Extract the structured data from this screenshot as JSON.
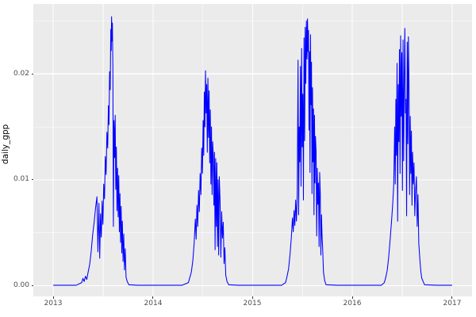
{
  "chart_data": {
    "type": "line",
    "title": "",
    "xlabel": "",
    "ylabel": "daily_gpp",
    "legend": "none",
    "grid": true,
    "panel_background": "#EBEBEB",
    "grid_color": "#FFFFFF",
    "axis_text_color": "#4D4D4D",
    "line_color": "#0000FF",
    "xlim": [
      2012.8,
      2017.2
    ],
    "ylim": [
      -0.001,
      0.0266
    ],
    "x_ticks": [
      2013,
      2014,
      2015,
      2016,
      2017
    ],
    "x_tick_labels": [
      "2013",
      "2014",
      "2015",
      "2016",
      "2017"
    ],
    "x_minor_ticks": [
      2013.5,
      2014.5,
      2015.5,
      2016.5
    ],
    "y_ticks": [
      0.0,
      0.01,
      0.02
    ],
    "y_tick_labels": [
      "0.00",
      "0.01",
      "0.02"
    ],
    "y_minor_ticks": [
      0.005,
      0.015,
      0.025
    ],
    "series": [
      {
        "name": "daily_gpp",
        "points": [
          [
            2013.0,
            5e-05
          ],
          [
            2013.12,
            5e-05
          ],
          [
            2013.23,
            5e-05
          ],
          [
            2013.285,
            0.0003
          ],
          [
            2013.298,
            0.0007
          ],
          [
            2013.31,
            0.0004
          ],
          [
            2013.323,
            0.0009
          ],
          [
            2013.336,
            0.0006
          ],
          [
            2013.35,
            0.0013
          ],
          [
            2013.365,
            0.002
          ],
          [
            2013.38,
            0.0032
          ],
          [
            2013.395,
            0.0048
          ],
          [
            2013.41,
            0.006
          ],
          [
            2013.425,
            0.0074
          ],
          [
            2013.438,
            0.0084
          ],
          [
            2013.448,
            0.0032
          ],
          [
            2013.458,
            0.0078
          ],
          [
            2013.466,
            0.0026
          ],
          [
            2013.474,
            0.0068
          ],
          [
            2013.482,
            0.0046
          ],
          [
            2013.49,
            0.008
          ],
          [
            2013.498,
            0.0058
          ],
          [
            2013.506,
            0.0096
          ],
          [
            2013.514,
            0.0082
          ],
          [
            2013.522,
            0.0122
          ],
          [
            2013.53,
            0.0105
          ],
          [
            2013.538,
            0.0145
          ],
          [
            2013.546,
            0.013
          ],
          [
            2013.553,
            0.017
          ],
          [
            2013.559,
            0.0152
          ],
          [
            2013.565,
            0.0202
          ],
          [
            2013.571,
            0.0185
          ],
          [
            2013.577,
            0.0242
          ],
          [
            2013.581,
            0.0222
          ],
          [
            2013.585,
            0.0254
          ],
          [
            2013.589,
            0.0231
          ],
          [
            2013.593,
            0.0248
          ],
          [
            2013.598,
            0.0206
          ],
          [
            2013.603,
            0.0056
          ],
          [
            2013.609,
            0.0156
          ],
          [
            2013.615,
            0.0121
          ],
          [
            2013.621,
            0.0161
          ],
          [
            2013.627,
            0.0091
          ],
          [
            2013.633,
            0.0131
          ],
          [
            2013.639,
            0.0071
          ],
          [
            2013.645,
            0.0111
          ],
          [
            2013.651,
            0.0065
          ],
          [
            2013.657,
            0.0104
          ],
          [
            2013.663,
            0.0051
          ],
          [
            2013.669,
            0.0087
          ],
          [
            2013.675,
            0.0041
          ],
          [
            2013.681,
            0.0075
          ],
          [
            2013.687,
            0.0031
          ],
          [
            2013.693,
            0.0061
          ],
          [
            2013.7,
            0.0023
          ],
          [
            2013.707,
            0.0049
          ],
          [
            2013.714,
            0.0015
          ],
          [
            2013.722,
            0.0035
          ],
          [
            2013.73,
            0.0008
          ],
          [
            2013.742,
            0.0004
          ],
          [
            2013.758,
            0.0001
          ],
          [
            2013.85,
            5e-05
          ],
          [
            2014.0,
            5e-05
          ],
          [
            2014.15,
            5e-05
          ],
          [
            2014.29,
            5e-05
          ],
          [
            2014.355,
            0.0003
          ],
          [
            2014.37,
            0.0008
          ],
          [
            2014.385,
            0.0013
          ],
          [
            2014.4,
            0.0024
          ],
          [
            2014.413,
            0.004
          ],
          [
            2014.425,
            0.0063
          ],
          [
            2014.433,
            0.0044
          ],
          [
            2014.441,
            0.0076
          ],
          [
            2014.449,
            0.0056
          ],
          [
            2014.457,
            0.009
          ],
          [
            2014.465,
            0.007
          ],
          [
            2014.473,
            0.0106
          ],
          [
            2014.481,
            0.0086
          ],
          [
            2014.489,
            0.013
          ],
          [
            2014.496,
            0.0106
          ],
          [
            2014.503,
            0.0156
          ],
          [
            2014.509,
            0.0123
          ],
          [
            2014.515,
            0.0183
          ],
          [
            2014.521,
            0.015
          ],
          [
            2014.527,
            0.0203
          ],
          [
            2014.533,
            0.0163
          ],
          [
            2014.539,
            0.019
          ],
          [
            2014.545,
            0.0126
          ],
          [
            2014.551,
            0.0196
          ],
          [
            2014.557,
            0.014
          ],
          [
            2014.563,
            0.0184
          ],
          [
            2014.569,
            0.0116
          ],
          [
            2014.575,
            0.0166
          ],
          [
            2014.581,
            0.0096
          ],
          [
            2014.587,
            0.015
          ],
          [
            2014.593,
            0.0086
          ],
          [
            2014.599,
            0.0136
          ],
          [
            2014.605,
            0.0123
          ],
          [
            2014.611,
            0.0076
          ],
          [
            2014.617,
            0.0126
          ],
          [
            2014.623,
            0.0034
          ],
          [
            2014.629,
            0.012
          ],
          [
            2014.635,
            0.0056
          ],
          [
            2014.641,
            0.0116
          ],
          [
            2014.647,
            0.0037
          ],
          [
            2014.653,
            0.01
          ],
          [
            2014.659,
            0.0029
          ],
          [
            2014.665,
            0.0103
          ],
          [
            2014.673,
            0.008
          ],
          [
            2014.681,
            0.0027
          ],
          [
            2014.689,
            0.007
          ],
          [
            2014.697,
            0.0045
          ],
          [
            2014.705,
            0.006
          ],
          [
            2014.713,
            0.0021
          ],
          [
            2014.721,
            0.0036
          ],
          [
            2014.73,
            0.001
          ],
          [
            2014.743,
            0.0004
          ],
          [
            2014.76,
            0.0001
          ],
          [
            2014.86,
            5e-05
          ],
          [
            2015.0,
            5e-05
          ],
          [
            2015.15,
            5e-05
          ],
          [
            2015.29,
            5e-05
          ],
          [
            2015.33,
            0.0003
          ],
          [
            2015.345,
            0.0009
          ],
          [
            2015.36,
            0.0016
          ],
          [
            2015.374,
            0.0029
          ],
          [
            2015.388,
            0.0046
          ],
          [
            2015.399,
            0.0064
          ],
          [
            2015.407,
            0.0051
          ],
          [
            2015.415,
            0.0071
          ],
          [
            2015.423,
            0.0057
          ],
          [
            2015.431,
            0.0081
          ],
          [
            2015.439,
            0.0061
          ],
          [
            2015.447,
            0.0087
          ],
          [
            2015.455,
            0.0213
          ],
          [
            2015.461,
            0.0067
          ],
          [
            2015.467,
            0.015
          ],
          [
            2015.473,
            0.0117
          ],
          [
            2015.479,
            0.0207
          ],
          [
            2015.485,
            0.0094
          ],
          [
            2015.491,
            0.0224
          ],
          [
            2015.497,
            0.0131
          ],
          [
            2015.503,
            0.0181
          ],
          [
            2015.509,
            0.0081
          ],
          [
            2015.515,
            0.0234
          ],
          [
            2015.521,
            0.0137
          ],
          [
            2015.527,
            0.0244
          ],
          [
            2015.533,
            0.0191
          ],
          [
            2015.539,
            0.025
          ],
          [
            2015.545,
            0.0214
          ],
          [
            2015.55,
            0.0252
          ],
          [
            2015.555,
            0.0221
          ],
          [
            2015.56,
            0.0241
          ],
          [
            2015.565,
            0.0147
          ],
          [
            2015.57,
            0.0221
          ],
          [
            2015.575,
            0.0107
          ],
          [
            2015.58,
            0.0237
          ],
          [
            2015.585,
            0.0171
          ],
          [
            2015.59,
            0.0211
          ],
          [
            2015.595,
            0.0087
          ],
          [
            2015.6,
            0.0187
          ],
          [
            2015.605,
            0.0117
          ],
          [
            2015.61,
            0.0167
          ],
          [
            2015.615,
            0.0067
          ],
          [
            2015.62,
            0.0161
          ],
          [
            2015.625,
            0.0097
          ],
          [
            2015.63,
            0.0141
          ],
          [
            2015.636,
            0.0127
          ],
          [
            2015.642,
            0.0047
          ],
          [
            2015.648,
            0.0111
          ],
          [
            2015.654,
            0.0077
          ],
          [
            2015.66,
            0.0097
          ],
          [
            2015.666,
            0.0037
          ],
          [
            2015.672,
            0.0107
          ],
          [
            2015.678,
            0.0087
          ],
          [
            2015.684,
            0.0029
          ],
          [
            2015.69,
            0.0067
          ],
          [
            2015.696,
            0.0047
          ],
          [
            2015.702,
            0.0035
          ],
          [
            2015.71,
            0.0013
          ],
          [
            2015.722,
            0.0005
          ],
          [
            2015.736,
            0.0001
          ],
          [
            2015.85,
            5e-05
          ],
          [
            2016.0,
            5e-05
          ],
          [
            2016.15,
            5e-05
          ],
          [
            2016.29,
            5e-05
          ],
          [
            2016.32,
            0.0003
          ],
          [
            2016.335,
            0.0008
          ],
          [
            2016.35,
            0.0015
          ],
          [
            2016.364,
            0.0027
          ],
          [
            2016.378,
            0.0043
          ],
          [
            2016.392,
            0.006
          ],
          [
            2016.405,
            0.0078
          ],
          [
            2016.415,
            0.0096
          ],
          [
            2016.424,
            0.015
          ],
          [
            2016.43,
            0.0096
          ],
          [
            2016.436,
            0.0176
          ],
          [
            2016.442,
            0.0123
          ],
          [
            2016.448,
            0.021
          ],
          [
            2016.454,
            0.0061
          ],
          [
            2016.46,
            0.019
          ],
          [
            2016.466,
            0.0136
          ],
          [
            2016.472,
            0.0223
          ],
          [
            2016.478,
            0.0106
          ],
          [
            2016.484,
            0.0236
          ],
          [
            2016.49,
            0.016
          ],
          [
            2016.496,
            0.022
          ],
          [
            2016.502,
            0.009
          ],
          [
            2016.508,
            0.0232
          ],
          [
            2016.514,
            0.0118
          ],
          [
            2016.52,
            0.0194
          ],
          [
            2016.526,
            0.0243
          ],
          [
            2016.532,
            0.0163
          ],
          [
            2016.538,
            0.0176
          ],
          [
            2016.544,
            0.0066
          ],
          [
            2016.55,
            0.023
          ],
          [
            2016.556,
            0.0134
          ],
          [
            2016.562,
            0.0235
          ],
          [
            2016.568,
            0.019
          ],
          [
            2016.574,
            0.0086
          ],
          [
            2016.58,
            0.016
          ],
          [
            2016.586,
            0.0106
          ],
          [
            2016.592,
            0.0146
          ],
          [
            2016.598,
            0.0076
          ],
          [
            2016.604,
            0.0126
          ],
          [
            2016.611,
            0.0096
          ],
          [
            2016.618,
            0.0116
          ],
          [
            2016.626,
            0.0066
          ],
          [
            2016.634,
            0.009
          ],
          [
            2016.642,
            0.0103
          ],
          [
            2016.65,
            0.0056
          ],
          [
            2016.658,
            0.0086
          ],
          [
            2016.666,
            0.004
          ],
          [
            2016.676,
            0.0026
          ],
          [
            2016.686,
            0.0014
          ],
          [
            2016.696,
            0.0007
          ],
          [
            2016.71,
            0.0004
          ],
          [
            2016.724,
            0.0001
          ],
          [
            2016.85,
            5e-05
          ],
          [
            2017.0,
            5e-05
          ]
        ]
      }
    ]
  }
}
